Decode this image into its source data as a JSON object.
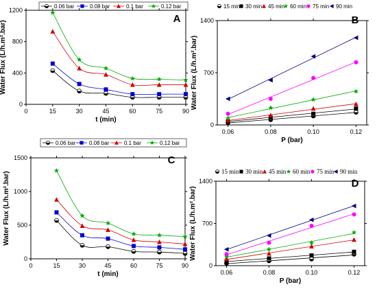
{
  "chart_data": [
    {
      "panel": "A",
      "type": "line",
      "xlabel": "t (min)",
      "ylabel": "Water Flux (L/h.m².bar)",
      "xlim": [
        0,
        90
      ],
      "ylim": [
        0,
        1200
      ],
      "xticks": [
        0,
        15,
        30,
        45,
        60,
        75,
        90
      ],
      "yticks": [
        0,
        400,
        800,
        1200
      ],
      "x": [
        15,
        30,
        45,
        60,
        75,
        90
      ],
      "legend_position": "top",
      "series": [
        {
          "name": "0.06 bar",
          "color": "#000000",
          "marker": "half-circle",
          "values": [
            430,
            170,
            140,
            90,
            90,
            90
          ]
        },
        {
          "name": "0.08 bar",
          "color": "#0000cc",
          "marker": "square",
          "values": [
            520,
            260,
            190,
            130,
            130,
            130
          ]
        },
        {
          "name": "0.1 bar",
          "color": "#cc0000",
          "marker": "triangle-up",
          "values": [
            930,
            460,
            380,
            250,
            250,
            250
          ]
        },
        {
          "name": "0.12 bar",
          "color": "#00aa00",
          "marker": "star",
          "values": [
            1170,
            570,
            460,
            330,
            320,
            310
          ]
        }
      ]
    },
    {
      "panel": "B",
      "type": "scatter",
      "xlabel": "P (bar)",
      "ylabel": "Water Flux (L/h.m².bar)",
      "xlim": [
        0.055,
        0.125
      ],
      "ylim": [
        0,
        1400
      ],
      "xticks": [
        0.06,
        0.08,
        0.1,
        0.12
      ],
      "xtick_labels": [
        "0.06",
        "0.08",
        "0.10",
        "0.12"
      ],
      "yticks": [
        0,
        700,
        1400
      ],
      "x": [
        0.06,
        0.08,
        0.1,
        0.12
      ],
      "legend_position": "top",
      "series": [
        {
          "name": "15 min",
          "color": "#000000",
          "marker": "half-circle",
          "values": [
            30,
            70,
            120,
            170
          ]
        },
        {
          "name": "30 min",
          "color": "#000000",
          "marker": "square",
          "values": [
            50,
            100,
            150,
            220
          ]
        },
        {
          "name": "45 min",
          "color": "#cc0000",
          "marker": "triangle-up",
          "values": [
            60,
            130,
            220,
            280
          ]
        },
        {
          "name": "60 min",
          "color": "#00aa00",
          "marker": "star",
          "values": [
            90,
            230,
            340,
            450
          ]
        },
        {
          "name": "75 min",
          "color": "#ff00ff",
          "marker": "circle",
          "values": [
            150,
            350,
            630,
            840
          ]
        },
        {
          "name": "90 min",
          "color": "#000080",
          "marker": "triangle-left",
          "values": [
            350,
            600,
            920,
            1170
          ]
        }
      ]
    },
    {
      "panel": "C",
      "type": "line",
      "xlabel": "t (min)",
      "ylabel": "Water Flux (L/h.m².bar)",
      "xlim": [
        0,
        90
      ],
      "ylim": [
        0,
        1500
      ],
      "xticks": [
        0,
        15,
        30,
        45,
        60,
        75,
        90
      ],
      "yticks": [
        0,
        500,
        1000,
        1500
      ],
      "x": [
        15,
        30,
        45,
        60,
        75,
        90
      ],
      "legend_position": "top",
      "series": [
        {
          "name": "0.06 bar",
          "color": "#000000",
          "marker": "half-circle",
          "values": [
            570,
            200,
            180,
            110,
            100,
            80
          ]
        },
        {
          "name": "0.08 bar",
          "color": "#0000cc",
          "marker": "square",
          "values": [
            690,
            350,
            300,
            190,
            170,
            140
          ]
        },
        {
          "name": "0.1 bar",
          "color": "#cc0000",
          "marker": "triangle-up",
          "values": [
            880,
            490,
            430,
            280,
            250,
            220
          ]
        },
        {
          "name": "0.12 bar",
          "color": "#00aa00",
          "marker": "star",
          "values": [
            1310,
            640,
            530,
            370,
            350,
            330
          ]
        }
      ]
    },
    {
      "panel": "D",
      "type": "scatter",
      "xlabel": "P (bar)",
      "ylabel": "Water Flux (L/h.m².bar)",
      "xlim": [
        0.055,
        0.125
      ],
      "ylim": [
        0,
        1400
      ],
      "xticks": [
        0.06,
        0.08,
        0.1,
        0.12
      ],
      "xtick_labels": [
        "0.06",
        "0.08",
        "0.10",
        "0.12"
      ],
      "yticks": [
        0,
        700,
        1400
      ],
      "x": [
        0.06,
        0.08,
        0.1,
        0.12
      ],
      "legend_position": "top",
      "series": [
        {
          "name": "15 min",
          "color": "#000000",
          "marker": "half-circle",
          "values": [
            40,
            80,
            110,
            190
          ]
        },
        {
          "name": "30 min",
          "color": "#000000",
          "marker": "square",
          "values": [
            70,
            120,
            170,
            230
          ]
        },
        {
          "name": "45 min",
          "color": "#cc0000",
          "marker": "triangle-up",
          "values": [
            110,
            200,
            320,
            430
          ]
        },
        {
          "name": "60 min",
          "color": "#00aa00",
          "marker": "star",
          "values": [
            150,
            270,
            380,
            550
          ]
        },
        {
          "name": "75 min",
          "color": "#ff00ff",
          "marker": "circle",
          "values": [
            190,
            380,
            660,
            850
          ]
        },
        {
          "name": "90 min",
          "color": "#000080",
          "marker": "triangle-left",
          "values": [
            270,
            500,
            760,
            990
          ]
        }
      ]
    }
  ]
}
